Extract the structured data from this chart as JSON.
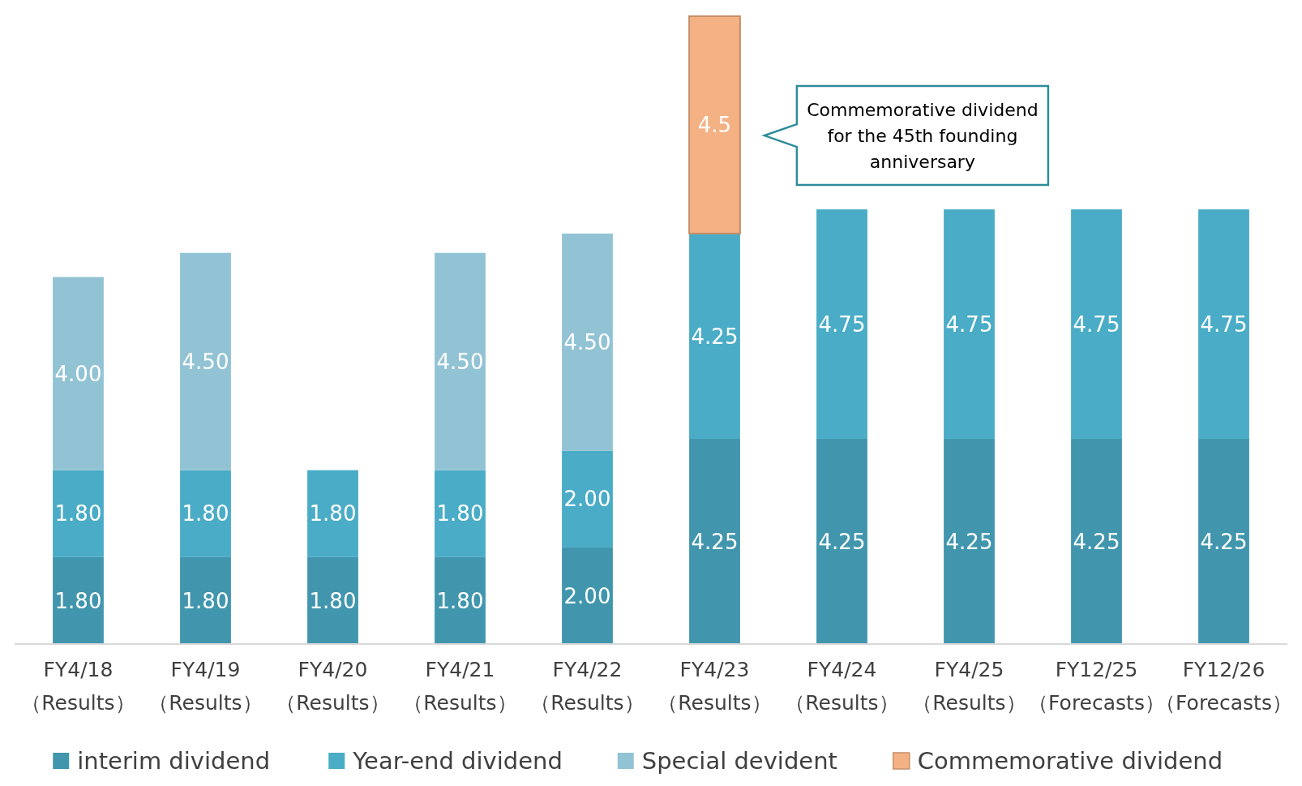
{
  "chart_data": {
    "type": "bar",
    "stacked": true,
    "data_labels": true,
    "legend": "bottom",
    "categories": [
      "FY4/18 （Results）",
      "FY4/19 （Results）",
      "FY4/20 （Results）",
      "FY4/21 （Results）",
      "FY4/22 （Results）",
      "FY4/23 （Results）",
      "FY4/24 （Results）",
      "FY4/25 （Results）",
      "FY12/25 （Forecasts）",
      "FY12/26 （Forecasts）"
    ],
    "series": [
      {
        "name": "interim dividend",
        "color": "#4196ae",
        "values": [
          1.8,
          1.8,
          1.8,
          1.8,
          2.0,
          4.25,
          4.25,
          4.25,
          4.25,
          4.25
        ],
        "value_labels": [
          "1.80",
          "1.80",
          "1.80",
          "1.80",
          "2.00",
          "4.25",
          "4.25",
          "4.25",
          "4.25",
          "4.25"
        ]
      },
      {
        "name": "Year-end dividend",
        "color": "#4aacc6",
        "values": [
          1.8,
          1.8,
          1.8,
          1.8,
          2.0,
          4.25,
          4.75,
          4.75,
          4.75,
          4.75
        ],
        "value_labels": [
          "1.80",
          "1.80",
          "1.80",
          "1.80",
          "2.00",
          "4.25",
          "4.75",
          "4.75",
          "4.75",
          "4.75"
        ]
      },
      {
        "name": "Special devident",
        "color": "#92c3d4",
        "values": [
          4.0,
          4.5,
          null,
          4.5,
          4.5,
          null,
          null,
          null,
          null,
          null
        ],
        "value_labels": [
          "4.00",
          "4.50",
          null,
          "4.50",
          "4.50",
          null,
          null,
          null,
          null,
          null
        ]
      },
      {
        "name": "Commemorative dividend",
        "color": "#f4b183",
        "values": [
          null,
          null,
          null,
          null,
          null,
          4.5,
          null,
          null,
          null,
          null
        ],
        "value_labels": [
          null,
          null,
          null,
          null,
          null,
          "4.5",
          null,
          null,
          null,
          null
        ]
      }
    ],
    "annotations": [
      "Commemorative dividend for the 45th founding anniversary"
    ]
  }
}
